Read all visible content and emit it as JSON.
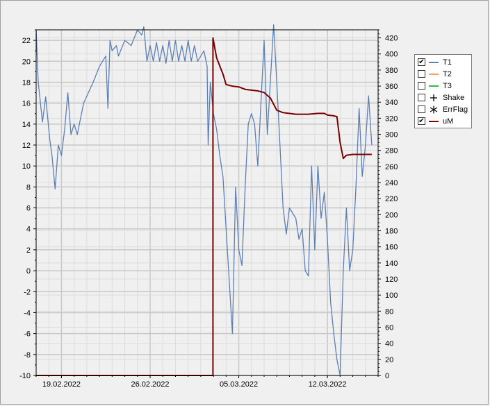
{
  "chart_data": {
    "type": "line",
    "left_axis": {
      "min": -10,
      "max": 23,
      "ticks": [
        -10,
        -8,
        -6,
        -4,
        -2,
        0,
        2,
        4,
        6,
        8,
        10,
        12,
        14,
        16,
        18,
        20,
        22
      ]
    },
    "right_axis": {
      "min": 0,
      "max": 430,
      "ticks": [
        0,
        20,
        40,
        60,
        80,
        100,
        120,
        140,
        160,
        180,
        200,
        220,
        240,
        260,
        280,
        300,
        320,
        340,
        360,
        380,
        400,
        420
      ]
    },
    "x_axis": {
      "type": "date",
      "start": "2022-02-17T00:00",
      "end": "2022-03-16T00:00",
      "tick_dates": [
        "2022-02-19",
        "2022-02-26",
        "2022-03-05",
        "2022-03-12"
      ],
      "tick_labels": [
        "19.02.2022",
        "26.02.2022",
        "05.03.2022",
        "12.03.2022"
      ]
    },
    "grid": true,
    "legend_position": "right",
    "series": [
      {
        "name": "T1",
        "axis": "left",
        "color": "#5b7fb5",
        "points": [
          [
            "2022-02-17T00:00",
            23.0
          ],
          [
            "2022-02-17T04:00",
            18.0
          ],
          [
            "2022-02-17T12:00",
            14.2
          ],
          [
            "2022-02-17T18:00",
            16.6
          ],
          [
            "2022-02-18T02:00",
            12.5
          ],
          [
            "2022-02-18T06:00",
            11.0
          ],
          [
            "2022-02-18T12:00",
            7.8
          ],
          [
            "2022-02-18T18:00",
            12.0
          ],
          [
            "2022-02-19T00:00",
            11.0
          ],
          [
            "2022-02-19T06:00",
            13.5
          ],
          [
            "2022-02-19T12:00",
            17.0
          ],
          [
            "2022-02-19T18:00",
            13.0
          ],
          [
            "2022-02-20T00:00",
            14.0
          ],
          [
            "2022-02-20T06:00",
            13.0
          ],
          [
            "2022-02-20T18:00",
            16.0
          ],
          [
            "2022-02-21T12:00",
            18.0
          ],
          [
            "2022-02-22T00:00",
            19.5
          ],
          [
            "2022-02-22T12:00",
            20.5
          ],
          [
            "2022-02-22T16:00",
            15.5
          ],
          [
            "2022-02-22T20:00",
            22.0
          ],
          [
            "2022-02-23T00:00",
            21.0
          ],
          [
            "2022-02-23T08:00",
            21.5
          ],
          [
            "2022-02-23T12:00",
            20.5
          ],
          [
            "2022-02-24T00:00",
            22.0
          ],
          [
            "2022-02-24T12:00",
            21.5
          ],
          [
            "2022-02-25T00:00",
            23.0
          ],
          [
            "2022-02-25T08:00",
            22.5
          ],
          [
            "2022-02-25T12:00",
            23.3
          ],
          [
            "2022-02-25T18:00",
            20.0
          ],
          [
            "2022-02-26T00:00",
            21.5
          ],
          [
            "2022-02-26T06:00",
            20.0
          ],
          [
            "2022-02-26T12:00",
            21.8
          ],
          [
            "2022-02-26T18:00",
            20.0
          ],
          [
            "2022-02-27T00:00",
            21.5
          ],
          [
            "2022-02-27T06:00",
            19.8
          ],
          [
            "2022-02-27T12:00",
            22.0
          ],
          [
            "2022-02-27T18:00",
            20.0
          ],
          [
            "2022-02-28T00:00",
            22.0
          ],
          [
            "2022-02-28T06:00",
            20.0
          ],
          [
            "2022-02-28T12:00",
            21.5
          ],
          [
            "2022-02-28T18:00",
            20.0
          ],
          [
            "2022-03-01T00:00",
            22.0
          ],
          [
            "2022-03-01T06:00",
            20.0
          ],
          [
            "2022-03-01T12:00",
            21.5
          ],
          [
            "2022-03-01T18:00",
            20.0
          ],
          [
            "2022-03-02T06:00",
            21.0
          ],
          [
            "2022-03-02T12:00",
            19.5
          ],
          [
            "2022-03-02T14:00",
            12.0
          ],
          [
            "2022-03-02T18:00",
            18.0
          ],
          [
            "2022-03-03T00:00",
            15.0
          ],
          [
            "2022-03-03T06:00",
            13.5
          ],
          [
            "2022-03-03T12:00",
            11.0
          ],
          [
            "2022-03-03T18:00",
            9.0
          ],
          [
            "2022-03-04T00:00",
            4.0
          ],
          [
            "2022-03-04T12:00",
            -6.0
          ],
          [
            "2022-03-04T18:00",
            8.0
          ],
          [
            "2022-03-05T00:00",
            2.0
          ],
          [
            "2022-03-05T06:00",
            0.5
          ],
          [
            "2022-03-05T12:00",
            8.0
          ],
          [
            "2022-03-05T18:00",
            14.0
          ],
          [
            "2022-03-06T00:00",
            15.0
          ],
          [
            "2022-03-06T06:00",
            14.0
          ],
          [
            "2022-03-06T12:00",
            10.0
          ],
          [
            "2022-03-07T00:00",
            22.0
          ],
          [
            "2022-03-07T06:00",
            13.0
          ],
          [
            "2022-03-07T18:00",
            23.5
          ],
          [
            "2022-03-08T00:00",
            18.0
          ],
          [
            "2022-03-08T06:00",
            12.0
          ],
          [
            "2022-03-08T12:00",
            6.0
          ],
          [
            "2022-03-08T18:00",
            3.5
          ],
          [
            "2022-03-09T00:00",
            6.0
          ],
          [
            "2022-03-09T12:00",
            5.0
          ],
          [
            "2022-03-09T18:00",
            3.0
          ],
          [
            "2022-03-10T00:00",
            4.0
          ],
          [
            "2022-03-10T06:00",
            0.0
          ],
          [
            "2022-03-10T12:00",
            -0.5
          ],
          [
            "2022-03-10T18:00",
            10.0
          ],
          [
            "2022-03-11T00:00",
            2.0
          ],
          [
            "2022-03-11T06:00",
            10.0
          ],
          [
            "2022-03-11T12:00",
            5.0
          ],
          [
            "2022-03-11T18:00",
            7.5
          ],
          [
            "2022-03-12T00:00",
            3.0
          ],
          [
            "2022-03-12T06:00",
            -3.0
          ],
          [
            "2022-03-12T12:00",
            -6.0
          ],
          [
            "2022-03-12T18:00",
            -8.5
          ],
          [
            "2022-03-13T00:00",
            -10.0
          ],
          [
            "2022-03-13T06:00",
            0.0
          ],
          [
            "2022-03-13T12:00",
            6.0
          ],
          [
            "2022-03-13T18:00",
            0.0
          ],
          [
            "2022-03-14T00:00",
            2.0
          ],
          [
            "2022-03-14T06:00",
            8.0
          ],
          [
            "2022-03-14T12:00",
            15.5
          ],
          [
            "2022-03-14T18:00",
            9.0
          ],
          [
            "2022-03-15T00:00",
            12.0
          ],
          [
            "2022-03-15T06:00",
            16.7
          ],
          [
            "2022-03-15T12:00",
            12.0
          ]
        ]
      },
      {
        "name": "uM",
        "axis": "right",
        "color": "#7a0000",
        "points": [
          [
            "2022-02-17T00:00",
            0
          ],
          [
            "2022-03-02T23:00",
            0
          ],
          [
            "2022-03-02T23:00",
            420
          ],
          [
            "2022-03-03T06:00",
            395
          ],
          [
            "2022-03-03T18:00",
            375
          ],
          [
            "2022-03-04T00:00",
            362
          ],
          [
            "2022-03-04T12:00",
            360
          ],
          [
            "2022-03-05T00:00",
            359
          ],
          [
            "2022-03-05T12:00",
            356
          ],
          [
            "2022-03-06T00:00",
            355
          ],
          [
            "2022-03-06T12:00",
            354
          ],
          [
            "2022-03-07T00:00",
            352
          ],
          [
            "2022-03-07T12:00",
            345
          ],
          [
            "2022-03-08T00:00",
            330
          ],
          [
            "2022-03-08T12:00",
            327
          ],
          [
            "2022-03-09T12:00",
            325
          ],
          [
            "2022-03-10T12:00",
            325
          ],
          [
            "2022-03-11T06:00",
            326
          ],
          [
            "2022-03-11T18:00",
            326
          ],
          [
            "2022-03-12T00:00",
            324
          ],
          [
            "2022-03-12T12:00",
            323
          ],
          [
            "2022-03-12T18:00",
            322
          ],
          [
            "2022-03-13T00:00",
            290
          ],
          [
            "2022-03-13T06:00",
            270
          ],
          [
            "2022-03-13T12:00",
            274
          ],
          [
            "2022-03-14T00:00",
            275
          ],
          [
            "2022-03-14T12:00",
            275
          ],
          [
            "2022-03-15T00:00",
            275
          ],
          [
            "2022-03-15T12:00",
            275
          ]
        ]
      }
    ]
  },
  "legend": {
    "items": [
      {
        "label": "T1",
        "checked": true,
        "symbol": "line",
        "color": "#5b7fb5"
      },
      {
        "label": "T2",
        "checked": false,
        "symbol": "line",
        "color": "#f0a060"
      },
      {
        "label": "T3",
        "checked": false,
        "symbol": "line",
        "color": "#3cb04a"
      },
      {
        "label": "Shake",
        "checked": false,
        "symbol": "plus-icon",
        "color": "#000000"
      },
      {
        "label": "ErrFlag",
        "checked": false,
        "symbol": "asterisk-icon",
        "color": "#000000"
      },
      {
        "label": "uM",
        "checked": true,
        "symbol": "line",
        "color": "#7a0000"
      }
    ]
  },
  "colors": {
    "plot_background": "#f0f0f0",
    "grid_major": "#c8c8c8",
    "grid_minor": "#dcdcdc"
  }
}
